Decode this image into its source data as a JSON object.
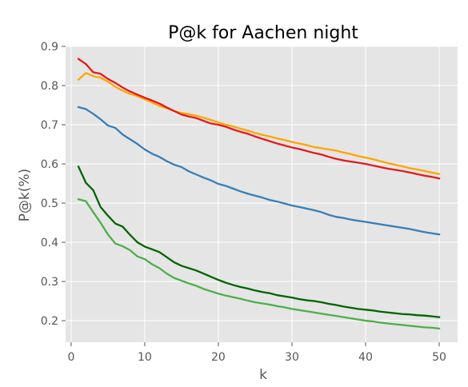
{
  "chart_data": {
    "type": "line",
    "title": "P@k for Aachen night",
    "xlabel": "k",
    "ylabel": "P@k(%)",
    "xlim": [
      -0.75,
      52.5
    ],
    "ylim": [
      0.145,
      0.9
    ],
    "xticks": [
      0,
      10,
      20,
      30,
      40,
      50
    ],
    "yticks": [
      0.2,
      0.3,
      0.4,
      0.5,
      0.6,
      0.7,
      0.8,
      0.9
    ],
    "xtick_labels": [
      "0",
      "10",
      "20",
      "30",
      "40",
      "50"
    ],
    "ytick_labels": [
      "0.2",
      "0.3",
      "0.4",
      "0.5",
      "0.6",
      "0.7",
      "0.8",
      "0.9"
    ],
    "grid": true,
    "background": "#e5e5e5",
    "legend": "none",
    "x": [
      1,
      2,
      3,
      4,
      5,
      6,
      7,
      8,
      9,
      10,
      11,
      12,
      13,
      14,
      15,
      16,
      17,
      18,
      19,
      20,
      21,
      22,
      23,
      24,
      25,
      26,
      27,
      28,
      29,
      30,
      31,
      32,
      33,
      34,
      35,
      36,
      37,
      38,
      39,
      40,
      41,
      42,
      43,
      44,
      45,
      46,
      47,
      48,
      49,
      50
    ],
    "series": [
      {
        "color": "#ffa500",
        "values": [
          0.815,
          0.832,
          0.824,
          0.82,
          0.81,
          0.797,
          0.787,
          0.779,
          0.773,
          0.765,
          0.757,
          0.748,
          0.742,
          0.735,
          0.73,
          0.727,
          0.723,
          0.718,
          0.712,
          0.706,
          0.7,
          0.696,
          0.69,
          0.685,
          0.679,
          0.674,
          0.67,
          0.665,
          0.661,
          0.656,
          0.652,
          0.648,
          0.643,
          0.64,
          0.637,
          0.634,
          0.629,
          0.625,
          0.62,
          0.616,
          0.612,
          0.607,
          0.602,
          0.598,
          0.594,
          0.589,
          0.586,
          0.582,
          0.578,
          0.574
        ]
      },
      {
        "color": "#e41a1c",
        "values": [
          0.868,
          0.855,
          0.834,
          0.83,
          0.817,
          0.807,
          0.795,
          0.785,
          0.777,
          0.769,
          0.762,
          0.754,
          0.744,
          0.735,
          0.726,
          0.721,
          0.717,
          0.71,
          0.703,
          0.7,
          0.695,
          0.688,
          0.682,
          0.677,
          0.67,
          0.664,
          0.658,
          0.652,
          0.647,
          0.642,
          0.638,
          0.633,
          0.628,
          0.624,
          0.618,
          0.613,
          0.609,
          0.606,
          0.603,
          0.6,
          0.596,
          0.592,
          0.588,
          0.585,
          0.582,
          0.578,
          0.574,
          0.57,
          0.567,
          0.563
        ]
      },
      {
        "color": "#377eb8",
        "values": [
          0.745,
          0.74,
          0.728,
          0.714,
          0.698,
          0.692,
          0.675,
          0.663,
          0.651,
          0.637,
          0.626,
          0.618,
          0.607,
          0.598,
          0.592,
          0.581,
          0.573,
          0.565,
          0.558,
          0.549,
          0.544,
          0.537,
          0.53,
          0.524,
          0.519,
          0.514,
          0.508,
          0.504,
          0.499,
          0.494,
          0.49,
          0.486,
          0.482,
          0.477,
          0.47,
          0.465,
          0.462,
          0.458,
          0.455,
          0.452,
          0.449,
          0.446,
          0.443,
          0.44,
          0.437,
          0.434,
          0.43,
          0.426,
          0.423,
          0.42
        ]
      },
      {
        "color": "#006400",
        "values": [
          0.593,
          0.552,
          0.533,
          0.49,
          0.468,
          0.448,
          0.44,
          0.419,
          0.4,
          0.389,
          0.382,
          0.375,
          0.362,
          0.349,
          0.34,
          0.334,
          0.328,
          0.32,
          0.312,
          0.304,
          0.297,
          0.291,
          0.286,
          0.282,
          0.277,
          0.273,
          0.27,
          0.265,
          0.262,
          0.259,
          0.255,
          0.252,
          0.25,
          0.247,
          0.243,
          0.24,
          0.236,
          0.233,
          0.23,
          0.228,
          0.226,
          0.223,
          0.221,
          0.219,
          0.217,
          0.216,
          0.214,
          0.213,
          0.211,
          0.209
        ]
      },
      {
        "color": "#4daf4a",
        "values": [
          0.51,
          0.505,
          0.477,
          0.45,
          0.42,
          0.397,
          0.39,
          0.38,
          0.364,
          0.357,
          0.344,
          0.334,
          0.32,
          0.309,
          0.302,
          0.295,
          0.289,
          0.281,
          0.275,
          0.269,
          0.264,
          0.26,
          0.256,
          0.251,
          0.247,
          0.244,
          0.241,
          0.237,
          0.234,
          0.23,
          0.227,
          0.224,
          0.221,
          0.218,
          0.215,
          0.212,
          0.209,
          0.206,
          0.203,
          0.2,
          0.198,
          0.195,
          0.193,
          0.191,
          0.189,
          0.187,
          0.185,
          0.183,
          0.182,
          0.18
        ]
      }
    ]
  }
}
